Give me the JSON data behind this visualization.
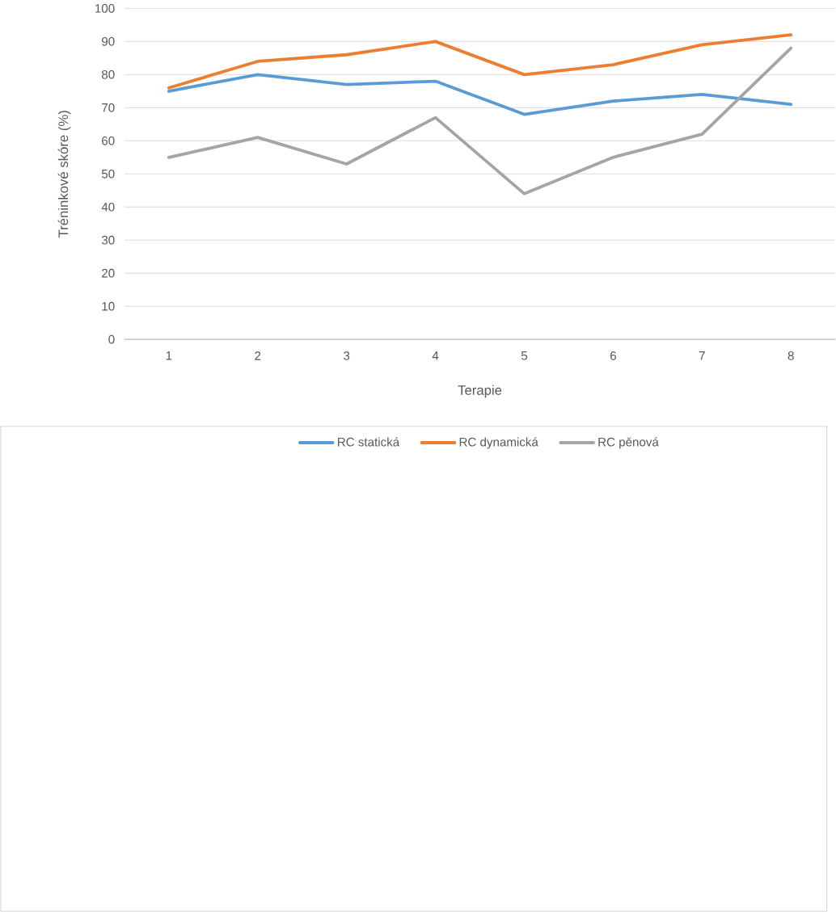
{
  "chart_data": {
    "type": "line",
    "xlabel": "Terapie",
    "ylabel": "Tréninkové skóre (%)",
    "categories": [
      "1",
      "2",
      "3",
      "4",
      "5",
      "6",
      "7",
      "8"
    ],
    "series": [
      {
        "name": "RC statická",
        "color": "#5b9bd5",
        "values": [
          75,
          80,
          77,
          78,
          68,
          72,
          74,
          71
        ]
      },
      {
        "name": "RC dynamická",
        "color": "#ed7d31",
        "values": [
          76,
          84,
          86,
          90,
          80,
          83,
          89,
          92
        ]
      },
      {
        "name": "RC pěnová",
        "color": "#a5a5a5",
        "values": [
          55,
          61,
          53,
          67,
          44,
          55,
          62,
          88
        ]
      }
    ],
    "ylim": [
      0,
      100
    ],
    "yticks": [
      0,
      10,
      20,
      30,
      40,
      50,
      60,
      70,
      80,
      90,
      100
    ],
    "grid": "y",
    "legend": "bottom",
    "marker": "none",
    "line_style": "solid"
  }
}
